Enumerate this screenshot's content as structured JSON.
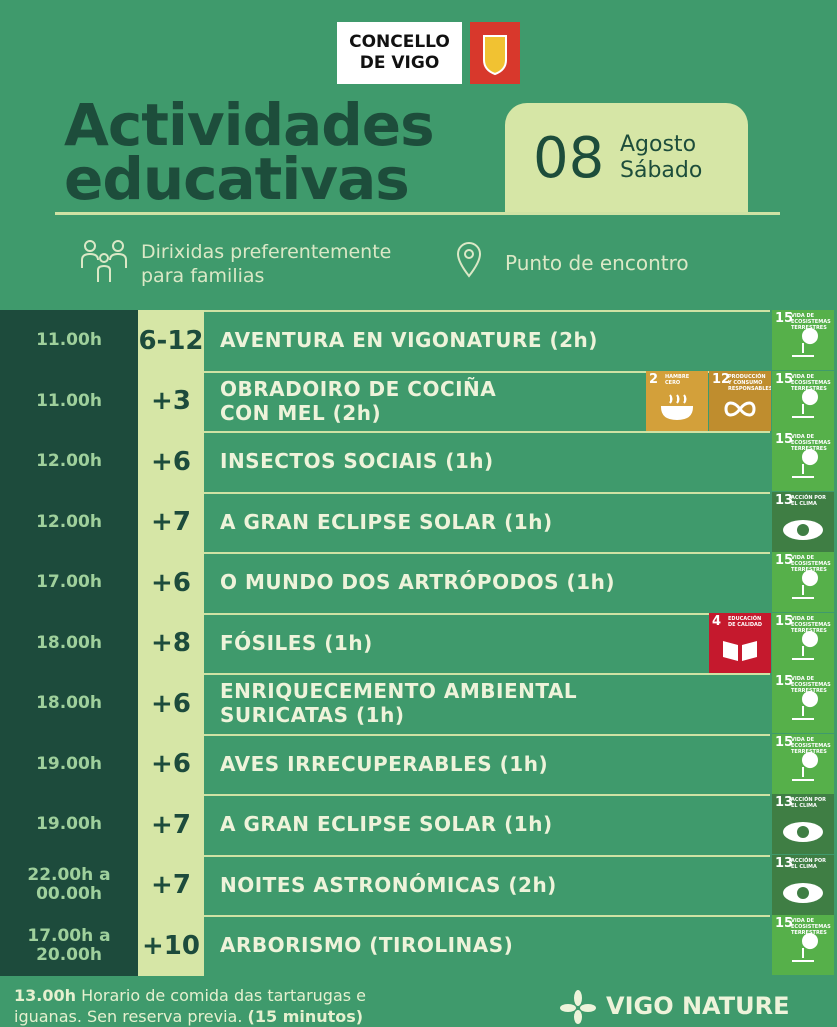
{
  "header": {
    "logo": [
      "CONCELLO",
      "DE VIGO"
    ],
    "title": [
      "Actividades",
      "educativas"
    ],
    "date": {
      "day": "08",
      "month": "Agosto",
      "weekday": "Sábado"
    },
    "audience": [
      "Dirixidas preferentemente",
      "para familias"
    ],
    "meeting_point": "Punto de encontro"
  },
  "table": {
    "rows": [
      {
        "time": [
          "11.00h"
        ],
        "age": "6-12",
        "activity": [
          "AVENTURA EN VIGONATURE (2h)"
        ],
        "badges": [
          {
            "number": "15",
            "label": "VIDA DE ECOSISTEMAS TERRESTRES",
            "color": "#56b04a"
          }
        ]
      },
      {
        "time": [
          "11.00h"
        ],
        "age": "+3",
        "activity": [
          "OBRADOIRO DE COCIÑA",
          "CON MEL  (2h)"
        ],
        "badges": [
          {
            "number": "2",
            "label": "HAMBRE CERO",
            "color": "#d3a03a"
          },
          {
            "number": "12",
            "label": "PRODUCCIÓN Y CONSUMO RESPONSABLES",
            "color": "#bf8d2e"
          },
          {
            "number": "15",
            "label": "VIDA DE ECOSISTEMAS TERRESTRES",
            "color": "#56b04a"
          }
        ]
      },
      {
        "time": [
          "12.00h"
        ],
        "age": "+6",
        "activity": [
          "INSECTOS SOCIAIS (1h)"
        ],
        "badges": [
          {
            "number": "15",
            "label": "VIDA DE ECOSISTEMAS TERRESTRES",
            "color": "#56b04a"
          }
        ]
      },
      {
        "time": [
          "12.00h"
        ],
        "age": "+7",
        "activity": [
          "A GRAN ECLIPSE SOLAR (1h)"
        ],
        "badges": [
          {
            "number": "13",
            "label": "ACCIÓN POR EL CLIMA",
            "color": "#3f7e44"
          }
        ]
      },
      {
        "time": [
          "17.00h"
        ],
        "age": "+6",
        "activity": [
          "O MUNDO DOS ARTRÓPODOS (1h)"
        ],
        "badges": [
          {
            "number": "15",
            "label": "VIDA DE ECOSISTEMAS TERRESTRES",
            "color": "#56b04a"
          }
        ]
      },
      {
        "time": [
          "18.00h"
        ],
        "age": "+8",
        "activity": [
          "FÓSILES (1h)"
        ],
        "badges": [
          {
            "number": "4",
            "label": "EDUCACIÓN DE CALIDAD",
            "color": "#c5192d"
          },
          {
            "number": "15",
            "label": "VIDA DE ECOSISTEMAS TERRESTRES",
            "color": "#56b04a"
          }
        ]
      },
      {
        "time": [
          "18.00h"
        ],
        "age": "+6",
        "activity": [
          "ENRIQUECEMENTO AMBIENTAL",
          "SURICATAS (1h)"
        ],
        "badges": [
          {
            "number": "15",
            "label": "VIDA DE ECOSISTEMAS TERRESTRES",
            "color": "#56b04a"
          }
        ]
      },
      {
        "time": [
          "19.00h"
        ],
        "age": "+6",
        "activity": [
          "AVES IRRECUPERABLES (1h)"
        ],
        "badges": [
          {
            "number": "15",
            "label": "VIDA DE ECOSISTEMAS TERRESTRES",
            "color": "#56b04a"
          }
        ]
      },
      {
        "time": [
          "19.00h"
        ],
        "age": "+7",
        "activity": [
          "A GRAN ECLIPSE SOLAR (1h)"
        ],
        "badges": [
          {
            "number": "13",
            "label": "ACCIÓN POR EL CLIMA",
            "color": "#3f7e44"
          }
        ]
      },
      {
        "time": [
          "22.00h a",
          "00.00h"
        ],
        "age": "+7",
        "activity": [
          "NOITES ASTRONÓMICAS (2h)"
        ],
        "badges": [
          {
            "number": "13",
            "label": "ACCIÓN POR EL CLIMA",
            "color": "#3f7e44"
          }
        ]
      },
      {
        "time": [
          "17.00h a",
          "20.00h"
        ],
        "age": "+10",
        "activity": [
          "ARBORISMO (TIROLINAS)"
        ],
        "badges": [
          {
            "number": "15",
            "label": "VIDA DE ECOSISTEMAS TERRESTRES",
            "color": "#56b04a"
          }
        ]
      }
    ]
  },
  "footer": {
    "note_time": "13.00h",
    "note": "Horario de comida das tartarugas e iguanas. Sen reserva previa.",
    "note_duration": "(15 minutos)",
    "brand": "VIGO NATURE"
  }
}
